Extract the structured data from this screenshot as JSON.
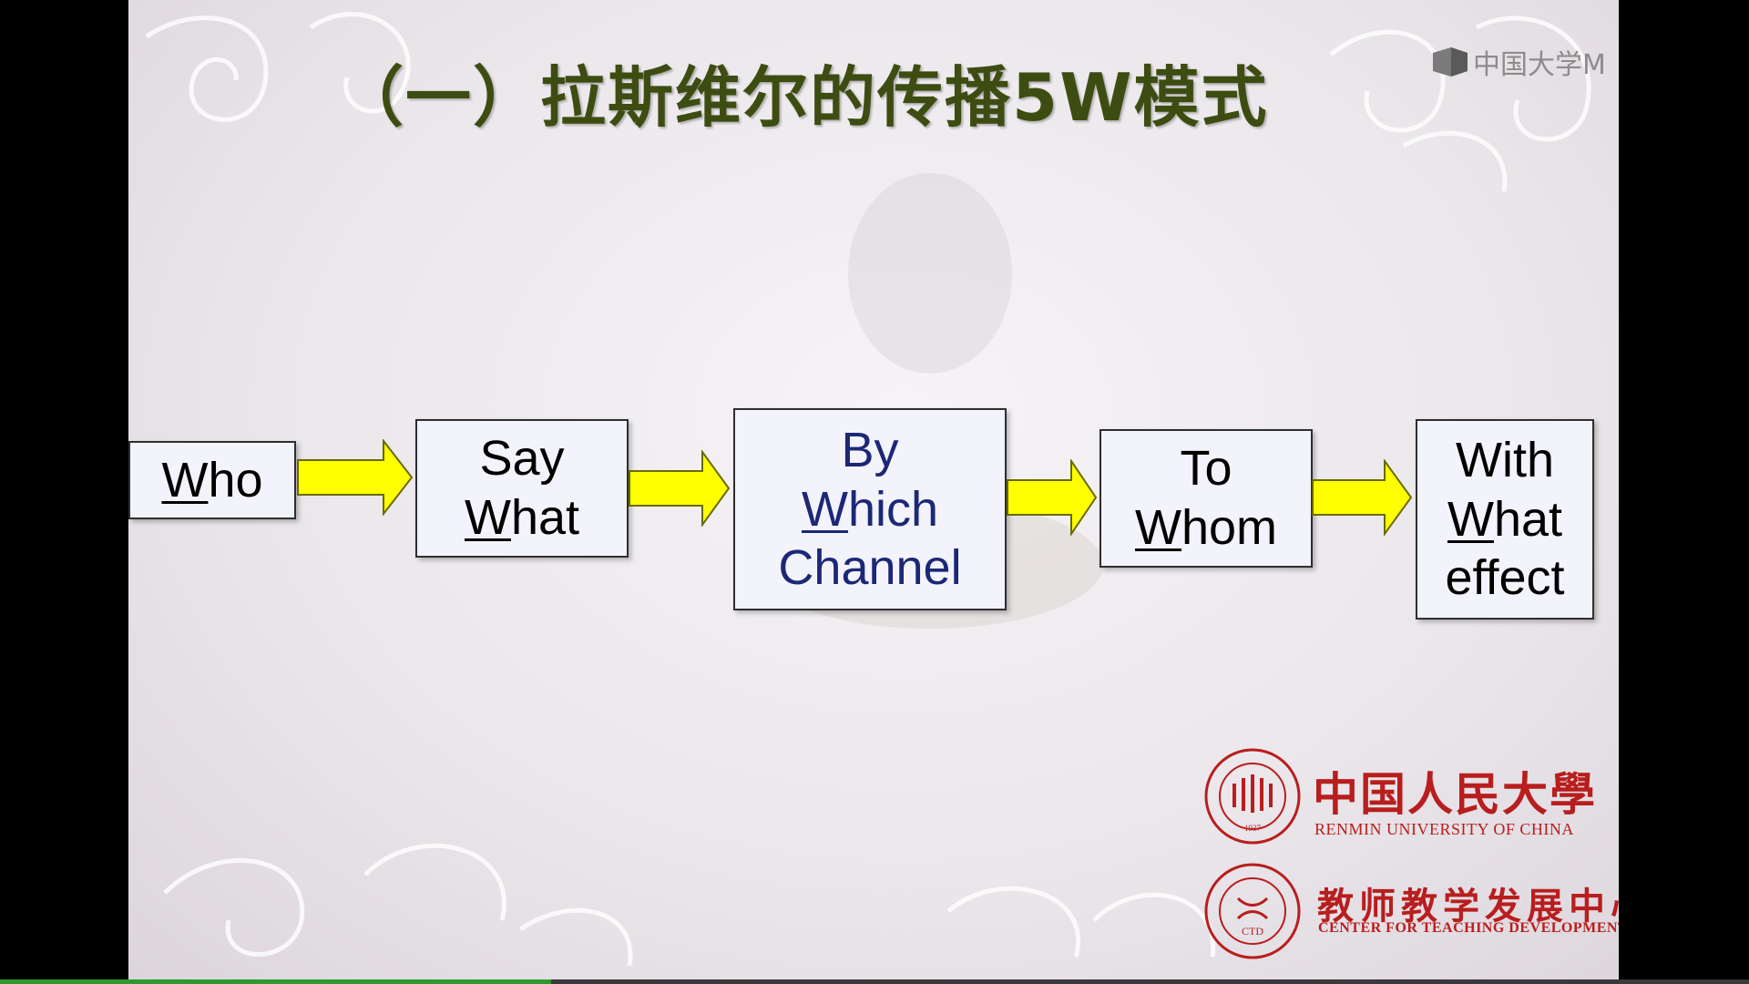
{
  "slide": {
    "title": "（一）拉斯维尔的传播5W模式",
    "watermark": "中国大学M",
    "boxes": [
      {
        "name": "who",
        "lines": [
          {
            "u": "W",
            "rest": "ho"
          }
        ]
      },
      {
        "name": "say-what",
        "lines": [
          {
            "u": "",
            "rest": "Say"
          },
          {
            "u": "W",
            "rest": "hat"
          }
        ]
      },
      {
        "name": "by-which-channel",
        "lines": [
          {
            "u": "",
            "rest": "By"
          },
          {
            "u": "W",
            "rest": "hich"
          },
          {
            "u": "",
            "rest": "Channel"
          }
        ]
      },
      {
        "name": "to-whom",
        "lines": [
          {
            "u": "",
            "rest": "To"
          },
          {
            "u": "W",
            "rest": "hom"
          }
        ]
      },
      {
        "name": "with-what-effect",
        "lines": [
          {
            "u": "",
            "rest": "With"
          },
          {
            "u": "W",
            "rest": "hat"
          },
          {
            "u": "",
            "rest": "effect"
          }
        ]
      }
    ],
    "arrow_color": "#ffff00"
  },
  "logos": {
    "renmin": {
      "cn": "中国人民大學",
      "en": "RENMIN UNIVERSITY OF CHINA",
      "seal_year": "1937"
    },
    "ctd": {
      "cn": "教师教学发展中心",
      "en": "CENTER FOR TEACHING DEVELOPMENT",
      "seal_text": "CTD"
    },
    "brand_color": "#b81e1e"
  },
  "player": {
    "progress": 0.315
  }
}
